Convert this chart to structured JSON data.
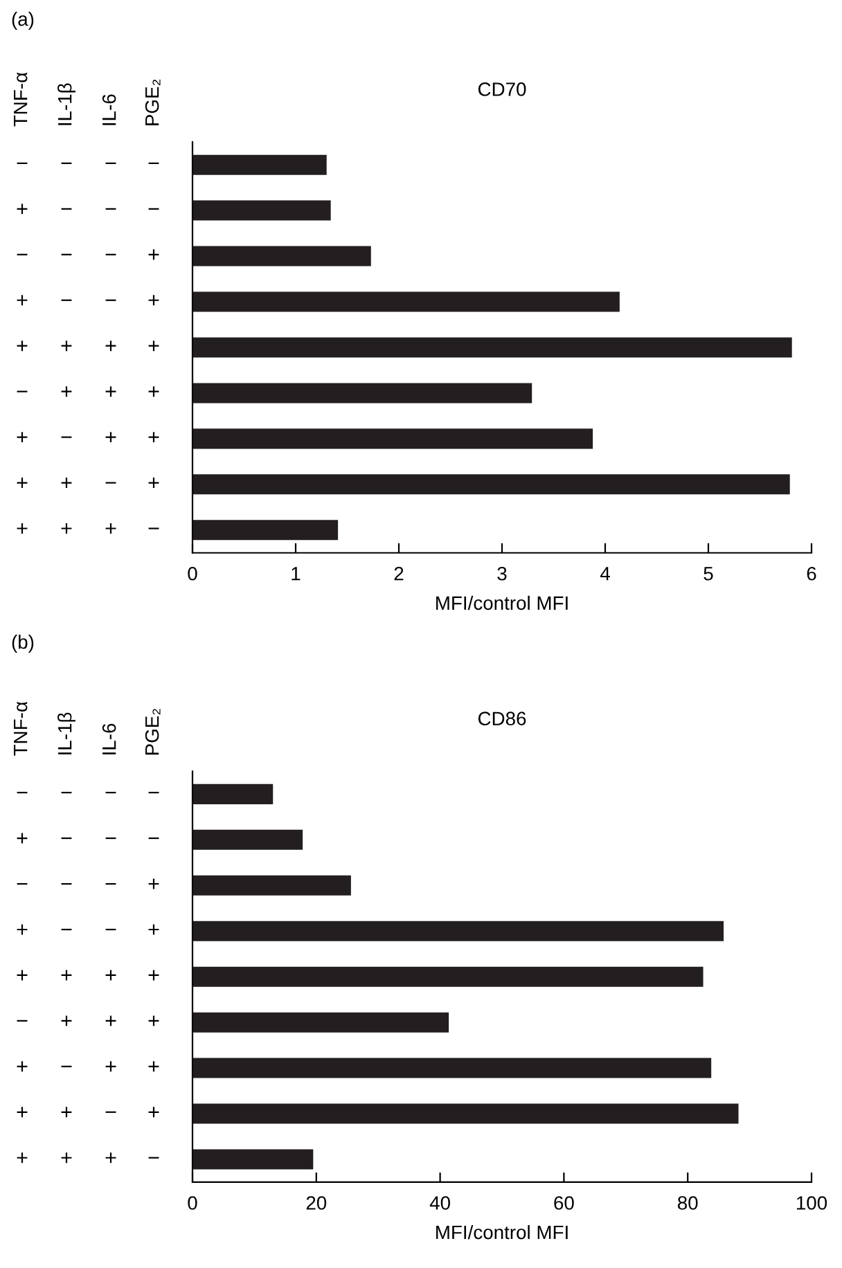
{
  "chart_data": [
    {
      "type": "bar",
      "orientation": "horizontal",
      "title": "CD70",
      "xlabel": "MFI/control MFI",
      "annotations": [
        "(a)",
        "TNF-α",
        "IL-1β",
        "IL-6",
        "PGE₂"
      ],
      "categories": [
        "− − − −",
        "+ − − −",
        "− − − +",
        "+ − − +",
        "+ + + +",
        "− + + +",
        "+ − + +",
        "+ + − +",
        "+ + + −"
      ],
      "values": [
        1.3,
        1.34,
        1.73,
        4.14,
        5.81,
        3.29,
        3.88,
        5.79,
        1.41
      ],
      "color": "#231f20",
      "xlim": [
        0,
        6
      ],
      "xticks": [
        0,
        1,
        2,
        3,
        4,
        5,
        6
      ]
    },
    {
      "type": "bar",
      "orientation": "horizontal",
      "title": "CD86",
      "xlabel": "MFI/control MFI",
      "annotations": [
        "(b)",
        "TNF-α",
        "IL-1β",
        "IL-6",
        "PGE₂"
      ],
      "categories": [
        "− − − −",
        "+ − − −",
        "− − − +",
        "+ − − +",
        "+ + + +",
        "− + + +",
        "+ − + +",
        "+ + − +",
        "+ + + −"
      ],
      "values": [
        13.0,
        17.8,
        25.6,
        85.8,
        82.5,
        41.4,
        83.8,
        88.2,
        19.5
      ],
      "color": "#231f20",
      "xlim": [
        0,
        100
      ],
      "xticks": [
        0,
        20,
        40,
        60,
        80,
        100
      ]
    }
  ]
}
